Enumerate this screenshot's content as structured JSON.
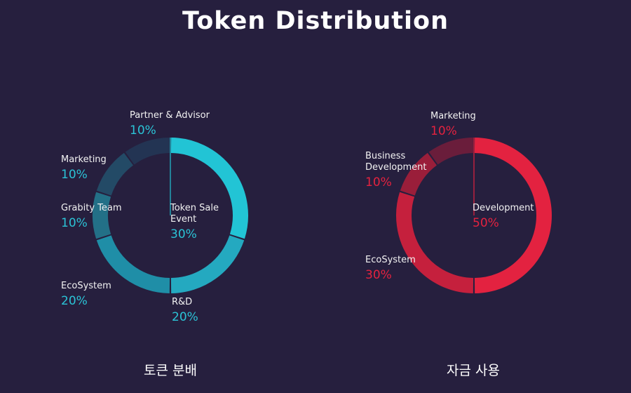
{
  "header": {
    "title": "Token Distribution"
  },
  "chart_data": [
    {
      "type": "pie",
      "donut": true,
      "caption": "토큰 분배",
      "slices": [
        {
          "label": "Token Sale Event",
          "value": 30,
          "value_label": "30%",
          "color": "#22c4d5"
        },
        {
          "label": "R&D",
          "value": 20,
          "value_label": "20%",
          "color": "#24a9c0"
        },
        {
          "label": "EcoSystem",
          "value": 20,
          "value_label": "20%",
          "color": "#1f8ea7"
        },
        {
          "label": "Grabity Team",
          "value": 10,
          "value_label": "10%",
          "color": "#237087"
        },
        {
          "label": "Marketing",
          "value": 10,
          "value_label": "10%",
          "color": "#234a66"
        },
        {
          "label": "Partner & Advisor",
          "value": 10,
          "value_label": "10%",
          "color": "#233453"
        }
      ]
    },
    {
      "type": "pie",
      "donut": true,
      "caption": "자금 사용",
      "slices": [
        {
          "label": "Development",
          "value": 50,
          "value_label": "50%",
          "color": "#e32240"
        },
        {
          "label": "EcoSystem",
          "value": 30,
          "value_label": "30%",
          "color": "#c5203d"
        },
        {
          "label": "Business Development",
          "value": 10,
          "value_label": "10%",
          "color": "#9a1e3a"
        },
        {
          "label": "Marketing",
          "value": 10,
          "value_label": "10%",
          "color": "#6a1d3b"
        }
      ]
    }
  ]
}
